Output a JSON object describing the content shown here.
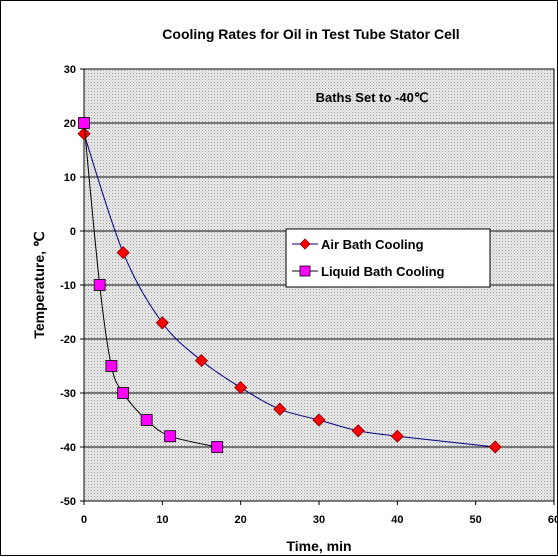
{
  "chart_data": {
    "type": "scatter",
    "title": "Cooling Rates for Oil in Test Tube Stator Cell",
    "xlabel": "Time, min",
    "ylabel": "Temperature, ℃",
    "xlim": [
      0,
      60
    ],
    "ylim": [
      -50,
      30
    ],
    "x_ticks": [
      0,
      10,
      20,
      30,
      40,
      50,
      60
    ],
    "y_ticks": [
      30,
      20,
      10,
      0,
      -10,
      -20,
      -30,
      -40,
      -50
    ],
    "grid": "horizontal",
    "legend_position": "center-right",
    "annotation": "Baths Set to -40℃",
    "series": [
      {
        "name": "Air Bath Cooling",
        "marker": "diamond",
        "color": "#ff0000",
        "line_color": "#000080",
        "x": [
          0,
          5,
          10,
          15,
          20,
          25,
          30,
          35,
          40,
          52.5
        ],
        "y": [
          18,
          -4,
          -17,
          -24,
          -29,
          -33,
          -35,
          -37,
          -38,
          -40
        ]
      },
      {
        "name": "Liquid Bath Cooling",
        "marker": "square",
        "color": "#ff00ff",
        "line_color": "#000000",
        "x": [
          0,
          2,
          3.5,
          5,
          8,
          11,
          17
        ],
        "y": [
          20,
          -10,
          -25,
          -30,
          -35,
          -38,
          -40
        ]
      }
    ]
  }
}
